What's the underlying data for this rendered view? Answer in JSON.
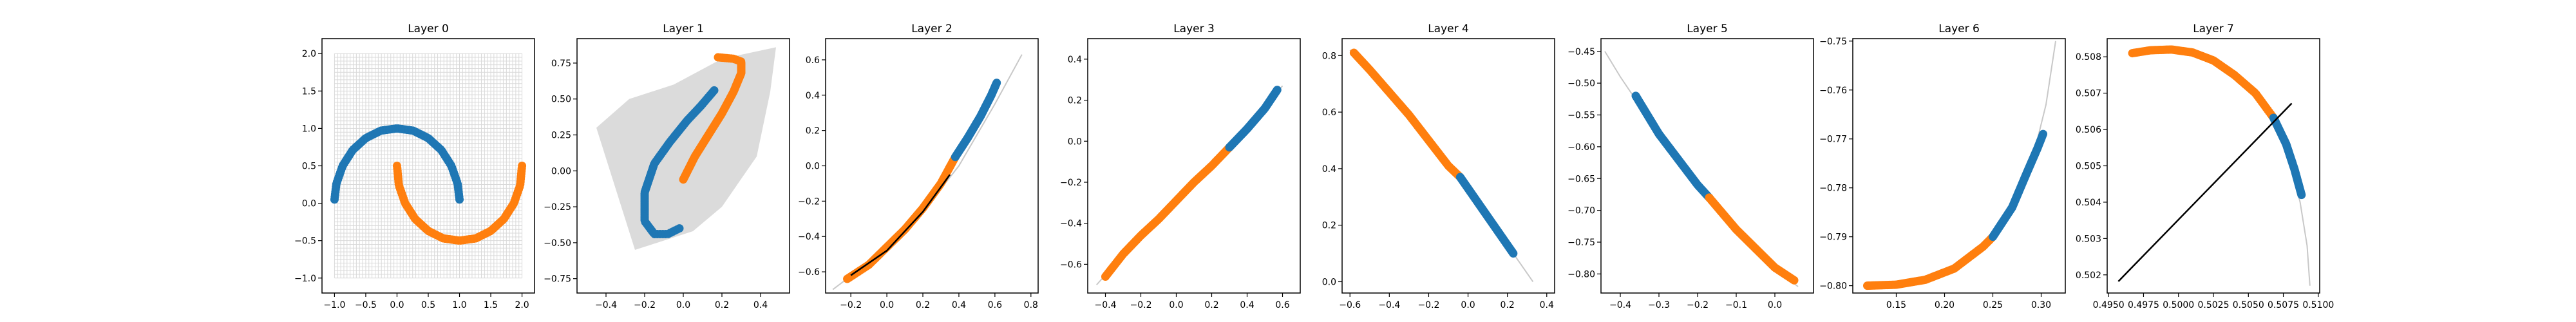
{
  "colors": {
    "series_a": "#1f77b4",
    "series_b": "#ff7f0e",
    "grid": "#d9d9d9",
    "boundary": "#000000",
    "axes": "#000000",
    "background": "#ffffff"
  },
  "chart_data": [
    {
      "type": "scatter",
      "title": "Layer 0",
      "grid": true,
      "grid_style": "dense-mesh",
      "xlim": [
        -1.2,
        2.2
      ],
      "ylim": [
        -1.2,
        2.2
      ],
      "xticks": [
        -1.0,
        -0.5,
        0.0,
        0.5,
        1.0,
        1.5,
        2.0
      ],
      "xtick_labels": [
        "−1.0",
        "−0.5",
        "0.0",
        "0.5",
        "1.0",
        "1.5",
        "2.0"
      ],
      "yticks": [
        -1.0,
        -0.5,
        0.0,
        0.5,
        1.0,
        1.5,
        2.0
      ],
      "ytick_labels": [
        "−1.0",
        "−0.5",
        "0.0",
        "0.5",
        "1.0",
        "1.5",
        "2.0"
      ],
      "series": [
        {
          "color": "blue",
          "points": [
            [
              -1.0,
              0.05
            ],
            [
              -0.97,
              0.26
            ],
            [
              -0.87,
              0.5
            ],
            [
              -0.71,
              0.71
            ],
            [
              -0.5,
              0.87
            ],
            [
              -0.26,
              0.97
            ],
            [
              0.0,
              1.0
            ],
            [
              0.26,
              0.97
            ],
            [
              0.5,
              0.87
            ],
            [
              0.71,
              0.71
            ],
            [
              0.87,
              0.5
            ],
            [
              0.97,
              0.26
            ],
            [
              1.0,
              0.05
            ]
          ]
        },
        {
          "color": "orange",
          "points": [
            [
              0.0,
              0.5
            ],
            [
              0.03,
              0.24
            ],
            [
              0.13,
              0.0
            ],
            [
              0.29,
              -0.21
            ],
            [
              0.5,
              -0.37
            ],
            [
              0.74,
              -0.47
            ],
            [
              1.0,
              -0.5
            ],
            [
              1.26,
              -0.47
            ],
            [
              1.5,
              -0.37
            ],
            [
              1.71,
              -0.21
            ],
            [
              1.87,
              0.0
            ],
            [
              1.97,
              0.24
            ],
            [
              2.0,
              0.5
            ]
          ]
        }
      ]
    },
    {
      "type": "scatter",
      "title": "Layer 1",
      "grid": true,
      "grid_style": "warped-mesh",
      "xlim": [
        -0.55,
        0.55
      ],
      "ylim": [
        -0.85,
        0.92
      ],
      "xticks": [
        -0.4,
        -0.2,
        0.0,
        0.2,
        0.4
      ],
      "xtick_labels": [
        "−0.4",
        "−0.2",
        "0.0",
        "0.2",
        "0.4"
      ],
      "yticks": [
        -0.75,
        -0.5,
        -0.25,
        0.0,
        0.25,
        0.5,
        0.75
      ],
      "ytick_labels": [
        "−0.75",
        "−0.50",
        "−0.25",
        "0.00",
        "0.25",
        "0.50",
        "0.75"
      ],
      "mesh_polygon": [
        [
          -0.35,
          -0.82
        ],
        [
          -0.1,
          -0.45
        ],
        [
          0.15,
          0.1
        ],
        [
          0.38,
          0.7
        ],
        [
          0.48,
          0.86
        ],
        [
          0.45,
          0.55
        ],
        [
          0.38,
          0.1
        ],
        [
          0.2,
          -0.25
        ],
        [
          0.05,
          -0.42
        ],
        [
          -0.25,
          -0.55
        ],
        [
          -0.45,
          0.3
        ],
        [
          -0.28,
          0.5
        ],
        [
          -0.05,
          0.6
        ],
        [
          0.2,
          0.78
        ],
        [
          0.48,
          0.86
        ],
        [
          0.38,
          0.7
        ],
        [
          0.15,
          0.1
        ],
        [
          -0.1,
          -0.45
        ]
      ],
      "series": [
        {
          "color": "blue",
          "points": [
            [
              -0.02,
              -0.4
            ],
            [
              -0.08,
              -0.44
            ],
            [
              -0.15,
              -0.44
            ],
            [
              -0.2,
              -0.35
            ],
            [
              -0.2,
              -0.15
            ],
            [
              -0.15,
              0.05
            ],
            [
              -0.07,
              0.2
            ],
            [
              0.02,
              0.35
            ],
            [
              0.09,
              0.45
            ],
            [
              0.16,
              0.56
            ]
          ]
        },
        {
          "color": "orange",
          "points": [
            [
              0.0,
              -0.06
            ],
            [
              0.06,
              0.1
            ],
            [
              0.13,
              0.25
            ],
            [
              0.2,
              0.4
            ],
            [
              0.26,
              0.55
            ],
            [
              0.3,
              0.68
            ],
            [
              0.3,
              0.76
            ],
            [
              0.26,
              0.78
            ],
            [
              0.18,
              0.79
            ]
          ]
        }
      ]
    },
    {
      "type": "scatter",
      "title": "Layer 2",
      "grid": true,
      "grid_style": "collapsed-curve",
      "xlim": [
        -0.34,
        0.84
      ],
      "ylim": [
        -0.72,
        0.72
      ],
      "xticks": [
        -0.2,
        0.0,
        0.2,
        0.4,
        0.6,
        0.8
      ],
      "xtick_labels": [
        "−0.2",
        "0.0",
        "0.2",
        "0.4",
        "0.6",
        "0.8"
      ],
      "yticks": [
        -0.6,
        -0.4,
        -0.2,
        0.0,
        0.2,
        0.4,
        0.6
      ],
      "ytick_labels": [
        "−0.6",
        "−0.4",
        "−0.2",
        "0.0",
        "0.2",
        "0.4",
        "0.6"
      ],
      "mesh_curve": [
        [
          -0.3,
          -0.7
        ],
        [
          0.0,
          -0.47
        ],
        [
          0.2,
          -0.26
        ],
        [
          0.4,
          0.0
        ],
        [
          0.6,
          0.35
        ],
        [
          0.75,
          0.63
        ]
      ],
      "boundary": [
        [
          -0.2,
          -0.62
        ],
        [
          0.0,
          -0.48
        ],
        [
          0.2,
          -0.26
        ],
        [
          0.35,
          -0.05
        ]
      ],
      "series": [
        {
          "color": "orange",
          "points": [
            [
              -0.22,
              -0.64
            ],
            [
              -0.1,
              -0.56
            ],
            [
              0.0,
              -0.46
            ],
            [
              0.1,
              -0.36
            ],
            [
              0.2,
              -0.24
            ],
            [
              0.3,
              -0.1
            ],
            [
              0.38,
              0.05
            ]
          ]
        },
        {
          "color": "blue",
          "points": [
            [
              0.38,
              0.05
            ],
            [
              0.45,
              0.16
            ],
            [
              0.52,
              0.28
            ],
            [
              0.58,
              0.4
            ],
            [
              0.61,
              0.47
            ]
          ]
        }
      ]
    },
    {
      "type": "scatter",
      "title": "Layer 3",
      "grid": true,
      "grid_style": "collapsed-curve",
      "xlim": [
        -0.5,
        0.7
      ],
      "ylim": [
        -0.74,
        0.5
      ],
      "xticks": [
        -0.4,
        -0.2,
        0.0,
        0.2,
        0.4,
        0.6
      ],
      "xtick_labels": [
        "−0.4",
        "−0.2",
        "0.0",
        "0.2",
        "0.4",
        "0.6"
      ],
      "yticks": [
        -0.6,
        -0.4,
        -0.2,
        0.0,
        0.2,
        0.4
      ],
      "ytick_labels": [
        "−0.6",
        "−0.4",
        "−0.2",
        "0.0",
        "0.2",
        "0.4"
      ],
      "mesh_curve": [
        [
          -0.45,
          -0.7
        ],
        [
          -0.2,
          -0.46
        ],
        [
          0.0,
          -0.29
        ],
        [
          0.2,
          -0.12
        ],
        [
          0.4,
          0.06
        ],
        [
          0.6,
          0.27
        ]
      ],
      "series": [
        {
          "color": "orange",
          "points": [
            [
              -0.4,
              -0.66
            ],
            [
              -0.3,
              -0.55
            ],
            [
              -0.2,
              -0.46
            ],
            [
              -0.1,
              -0.38
            ],
            [
              0.0,
              -0.29
            ],
            [
              0.1,
              -0.2
            ],
            [
              0.2,
              -0.12
            ],
            [
              0.3,
              -0.03
            ]
          ]
        },
        {
          "color": "blue",
          "points": [
            [
              0.3,
              -0.03
            ],
            [
              0.4,
              0.06
            ],
            [
              0.5,
              0.16
            ],
            [
              0.57,
              0.25
            ]
          ]
        }
      ]
    },
    {
      "type": "scatter",
      "title": "Layer 4",
      "grid": true,
      "grid_style": "collapsed-curve",
      "xlim": [
        -0.64,
        0.44
      ],
      "ylim": [
        -0.04,
        0.86
      ],
      "xticks": [
        -0.6,
        -0.4,
        -0.2,
        0.0,
        0.2,
        0.4
      ],
      "xtick_labels": [
        "−0.6",
        "−0.4",
        "−0.2",
        "0.0",
        "0.2",
        "0.4"
      ],
      "yticks": [
        0.0,
        0.2,
        0.4,
        0.6,
        0.8
      ],
      "ytick_labels": [
        "0.0",
        "0.2",
        "0.4",
        "0.6",
        "0.8"
      ],
      "mesh_curve": [
        [
          -0.6,
          0.82
        ],
        [
          -0.4,
          0.67
        ],
        [
          -0.2,
          0.5
        ],
        [
          0.0,
          0.32
        ],
        [
          0.2,
          0.13
        ],
        [
          0.33,
          0.0
        ]
      ],
      "series": [
        {
          "color": "orange",
          "points": [
            [
              -0.58,
              0.81
            ],
            [
              -0.5,
              0.75
            ],
            [
              -0.4,
              0.67
            ],
            [
              -0.3,
              0.59
            ],
            [
              -0.2,
              0.5
            ],
            [
              -0.1,
              0.41
            ],
            [
              -0.04,
              0.37
            ]
          ]
        },
        {
          "color": "blue",
          "points": [
            [
              -0.04,
              0.37
            ],
            [
              0.05,
              0.28
            ],
            [
              0.12,
              0.21
            ],
            [
              0.18,
              0.15
            ],
            [
              0.23,
              0.1
            ]
          ]
        }
      ]
    },
    {
      "type": "scatter",
      "title": "Layer 5",
      "grid": true,
      "grid_style": "collapsed-curve",
      "xlim": [
        -0.45,
        0.1
      ],
      "ylim": [
        -0.83,
        -0.43
      ],
      "xticks": [
        -0.4,
        -0.3,
        -0.2,
        -0.1,
        0.0
      ],
      "xtick_labels": [
        "−0.4",
        "−0.3",
        "−0.2",
        "−0.1",
        "0.0"
      ],
      "yticks": [
        -0.8,
        -0.75,
        -0.7,
        -0.65,
        -0.6,
        -0.55,
        -0.5,
        -0.45
      ],
      "ytick_labels": [
        "−0.80",
        "−0.75",
        "−0.70",
        "−0.65",
        "−0.60",
        "−0.55",
        "−0.50",
        "−0.45"
      ],
      "mesh_curve": [
        [
          -0.44,
          -0.45
        ],
        [
          -0.4,
          -0.49
        ],
        [
          -0.3,
          -0.58
        ],
        [
          -0.2,
          -0.66
        ],
        [
          -0.1,
          -0.73
        ],
        [
          0.0,
          -0.79
        ],
        [
          0.06,
          -0.82
        ]
      ],
      "series": [
        {
          "color": "blue",
          "points": [
            [
              -0.36,
              -0.52
            ],
            [
              -0.3,
              -0.58
            ],
            [
              -0.25,
              -0.62
            ],
            [
              -0.2,
              -0.66
            ],
            [
              -0.17,
              -0.68
            ]
          ]
        },
        {
          "color": "orange",
          "points": [
            [
              -0.17,
              -0.68
            ],
            [
              -0.1,
              -0.73
            ],
            [
              -0.05,
              -0.76
            ],
            [
              0.0,
              -0.79
            ],
            [
              0.05,
              -0.81
            ]
          ]
        }
      ]
    },
    {
      "type": "scatter",
      "title": "Layer 6",
      "grid": true,
      "grid_style": "collapsed-curve",
      "xlim": [
        0.105,
        0.325
      ],
      "ylim": [
        -0.8015,
        -0.7495
      ],
      "xticks": [
        0.15,
        0.2,
        0.25,
        0.3
      ],
      "xtick_labels": [
        "0.15",
        "0.20",
        "0.25",
        "0.30"
      ],
      "yticks": [
        -0.8,
        -0.79,
        -0.78,
        -0.77,
        -0.76,
        -0.75
      ],
      "ytick_labels": [
        "−0.80",
        "−0.79",
        "−0.78",
        "−0.77",
        "−0.76",
        "−0.75"
      ],
      "mesh_curve": [
        [
          0.12,
          -0.8
        ],
        [
          0.16,
          -0.7995
        ],
        [
          0.2,
          -0.7975
        ],
        [
          0.24,
          -0.792
        ],
        [
          0.27,
          -0.784
        ],
        [
          0.29,
          -0.775
        ],
        [
          0.305,
          -0.763
        ],
        [
          0.315,
          -0.75
        ]
      ],
      "series": [
        {
          "color": "orange",
          "points": [
            [
              0.12,
              -0.8
            ],
            [
              0.15,
              -0.7998
            ],
            [
              0.18,
              -0.7988
            ],
            [
              0.21,
              -0.7965
            ],
            [
              0.24,
              -0.792
            ],
            [
              0.25,
              -0.79
            ]
          ]
        },
        {
          "color": "blue",
          "points": [
            [
              0.25,
              -0.79
            ],
            [
              0.27,
              -0.784
            ],
            [
              0.285,
              -0.777
            ],
            [
              0.296,
              -0.772
            ],
            [
              0.302,
              -0.769
            ]
          ]
        }
      ]
    },
    {
      "type": "scatter",
      "title": "Layer 7",
      "grid": true,
      "grid_style": "collapsed-curve",
      "xlim": [
        0.4949,
        0.5101
      ],
      "ylim": [
        0.5015,
        0.5085
      ],
      "xticks": [
        0.495,
        0.4975,
        0.5,
        0.5025,
        0.505,
        0.5075,
        0.51
      ],
      "xtick_labels": [
        "0.4950",
        "0.4975",
        "0.5000",
        "0.5025",
        "0.5050",
        "0.5075",
        "0.5100"
      ],
      "yticks": [
        0.502,
        0.503,
        0.504,
        0.505,
        0.506,
        0.507,
        0.508
      ],
      "ytick_labels": [
        "0.502",
        "0.503",
        "0.504",
        "0.505",
        "0.506",
        "0.507",
        "0.508"
      ],
      "mesh_curve": [
        [
          0.4965,
          0.50812
        ],
        [
          0.4985,
          0.5082
        ],
        [
          0.5005,
          0.50815
        ],
        [
          0.5025,
          0.5079
        ],
        [
          0.5045,
          0.50735
        ],
        [
          0.5065,
          0.5065
        ],
        [
          0.5077,
          0.5055
        ],
        [
          0.5087,
          0.504
        ],
        [
          0.5092,
          0.5028
        ],
        [
          0.5094,
          0.5017
        ]
      ],
      "boundary": [
        [
          0.4957,
          0.50182
        ],
        [
          0.5081,
          0.50672
        ]
      ],
      "series": [
        {
          "color": "orange",
          "points": [
            [
              0.4967,
              0.5081
            ],
            [
              0.498,
              0.50818
            ],
            [
              0.4995,
              0.5082
            ],
            [
              0.501,
              0.50812
            ],
            [
              0.5025,
              0.5079
            ],
            [
              0.504,
              0.5075
            ],
            [
              0.5055,
              0.507
            ],
            [
              0.5068,
              0.50632
            ]
          ]
        },
        {
          "color": "blue",
          "points": [
            [
              0.5068,
              0.50632
            ],
            [
              0.5077,
              0.5056
            ],
            [
              0.5083,
              0.5049
            ],
            [
              0.5088,
              0.5042
            ]
          ]
        }
      ]
    }
  ]
}
